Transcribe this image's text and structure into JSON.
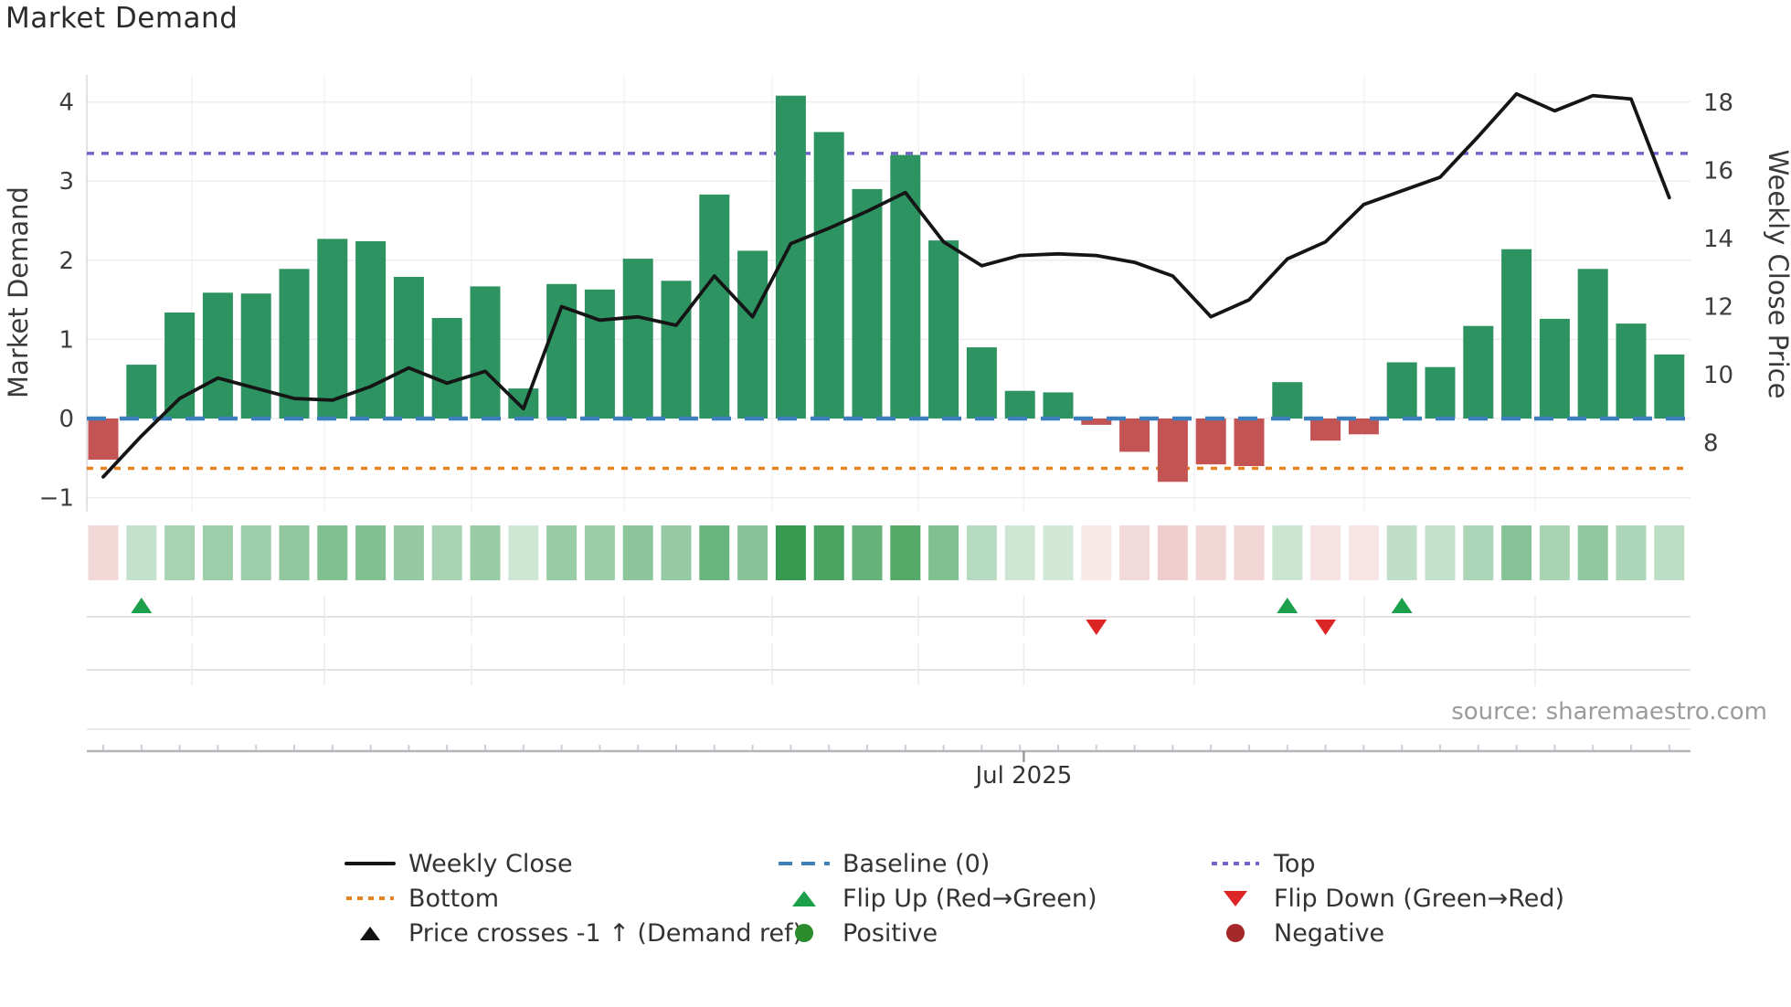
{
  "page": {
    "title": "Market Demand"
  },
  "source_note": "source: sharemaestro.com",
  "chart_data": {
    "type": "bar",
    "title": "Market Demand",
    "ylabel_left": "Market Demand",
    "ylabel_right": "Weekly Close Price",
    "x_axis": {
      "tick_label": "Jul 2025",
      "tick_index": 24.1
    },
    "ylim_left": [
      -1.18,
      4.34
    ],
    "ylim_right": [
      6.0,
      18.8
    ],
    "yticks_left": [
      "4",
      "3",
      "2",
      "1",
      "0",
      "−1"
    ],
    "yticks_left_values": [
      4,
      3,
      2,
      1,
      0,
      -1
    ],
    "yticks_right": [
      "18",
      "16",
      "14",
      "12",
      "10",
      "8"
    ],
    "yticks_right_values": [
      18,
      16,
      14,
      12,
      10,
      8
    ],
    "reference_lines": {
      "top": 3.35,
      "baseline": 0,
      "bottom": -0.63
    },
    "categories_note": "42 consecutive weekly bars, Jul 2025 tick falls near week 25",
    "series": [
      {
        "name": "Market Demand",
        "type": "bar",
        "axis": "left",
        "values": [
          -0.52,
          0.68,
          1.34,
          1.59,
          1.58,
          1.89,
          2.27,
          2.24,
          1.79,
          1.27,
          1.67,
          0.38,
          1.7,
          1.63,
          2.02,
          1.74,
          2.83,
          2.12,
          4.08,
          3.62,
          2.9,
          3.33,
          2.25,
          0.9,
          0.35,
          0.33,
          -0.08,
          -0.42,
          -0.8,
          -0.58,
          -0.6,
          0.46,
          -0.28,
          -0.2,
          0.71,
          0.65,
          1.17,
          2.14,
          1.26,
          1.89,
          1.2,
          0.81
        ]
      },
      {
        "name": "Weekly Close",
        "type": "line",
        "axis": "right",
        "values": [
          7.0,
          8.2,
          9.3,
          9.9,
          9.6,
          9.3,
          9.25,
          9.65,
          10.2,
          9.75,
          10.1,
          9.0,
          12.0,
          11.6,
          11.7,
          11.45,
          12.9,
          11.7,
          13.85,
          14.3,
          14.8,
          15.35,
          13.9,
          13.2,
          13.5,
          13.55,
          13.5,
          13.3,
          12.9,
          11.7,
          12.2,
          13.4,
          13.9,
          15.0,
          15.4,
          15.8,
          17.0,
          18.25,
          17.75,
          18.2,
          18.1,
          15.2
        ]
      }
    ],
    "heatmap_strip": {
      "note": "color intensity strip mirrors Market Demand bar values (green positive, red negative)"
    },
    "markers": {
      "flip_up_indices": [
        1,
        31,
        34
      ],
      "flip_down_indices": [
        26,
        32
      ],
      "price_cross_indices": []
    },
    "legend_position": "bottom"
  },
  "legend": {
    "items": [
      {
        "label": "Weekly Close",
        "swatch": "line-black"
      },
      {
        "label": "Baseline (0)",
        "swatch": "dash-blue"
      },
      {
        "label": "Top",
        "swatch": "dots-purple"
      },
      {
        "label": "Bottom",
        "swatch": "dots-orange"
      },
      {
        "label": "Flip Up (Red→Green)",
        "swatch": "triangle-up-green"
      },
      {
        "label": "Flip Down (Green→Red)",
        "swatch": "triangle-down-red"
      },
      {
        "label": "Price crosses -1 ↑ (Demand ref)",
        "swatch": "triangle-up-black"
      },
      {
        "label": "Positive",
        "swatch": "dot-green"
      },
      {
        "label": "Negative",
        "swatch": "dot-darkred"
      }
    ]
  },
  "colors": {
    "bar_positive": "#2d9461",
    "bar_negative": "#c45454",
    "heat_positive_rgb": "45,150,72",
    "heat_negative_rgb": "205,92,92",
    "price_line": "#151515",
    "baseline": "#3d7ebd",
    "bottom_line": "#e8821f",
    "top_line": "#7066c9",
    "flip_up": "#1ca04c",
    "flip_down": "#dc2626",
    "positive_dot": "#2a8c2a",
    "negative_dot": "#a52828",
    "grid": "#ededf1",
    "month_line": "#f3f3f6",
    "band_grid": "#d8d8dc",
    "band_line": "#e2e2e6",
    "spine": "#b5b5b9",
    "tick_text": "#3d3d3d",
    "axis_title_text": "#3a3a3a",
    "xlabel_text": "#333333"
  }
}
